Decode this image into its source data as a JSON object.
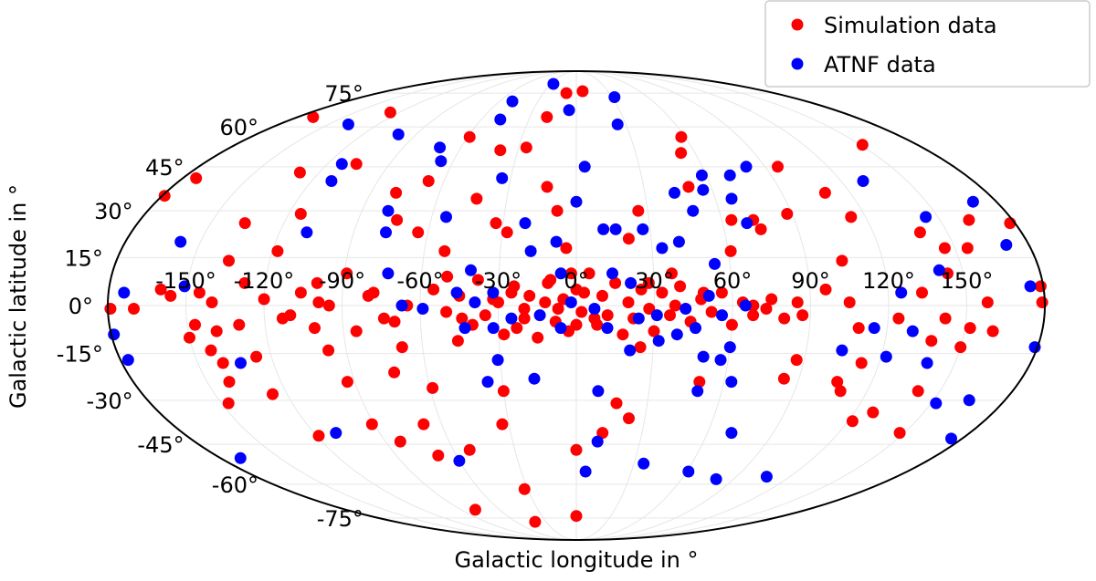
{
  "chart_data": {
    "type": "scatter",
    "projection": "mollweide",
    "xlabel": "Galactic longitude in °",
    "ylabel": "Galactic latitude in °",
    "xlim": [
      -180,
      180
    ],
    "ylim": [
      -90,
      90
    ],
    "grid": true,
    "legend_placement": "top-right",
    "x_tick_labels": [
      "-150°",
      "-120°",
      "-90°",
      "-60°",
      "-30°",
      "0°",
      "30°",
      "60°",
      "90°",
      "120°",
      "150°"
    ],
    "x_ticks": [
      -150,
      -120,
      -90,
      -60,
      -30,
      0,
      30,
      60,
      90,
      120,
      150
    ],
    "y_tick_labels": [
      "-75°",
      "-60°",
      "-45°",
      "-30°",
      "-15°",
      "0°",
      "15°",
      "30°",
      "45°",
      "60°",
      "75°"
    ],
    "y_ticks": [
      -75,
      -60,
      -45,
      -30,
      -15,
      0,
      15,
      30,
      45,
      60,
      75
    ],
    "series": [
      {
        "name": "Simulation data",
        "color": "#ff0000",
        "points": [
          [
            -179,
            35
          ],
          [
            -174,
            41
          ],
          [
            -170,
            64
          ],
          [
            -179,
            -1
          ],
          [
            -170,
            -1
          ],
          [
            -156,
            3
          ],
          [
            -145,
            4
          ],
          [
            -140,
            1
          ],
          [
            -136,
            26
          ],
          [
            -128,
            7
          ],
          [
            -136,
            14
          ],
          [
            -147,
            -6
          ],
          [
            -139,
            -8
          ],
          [
            -143,
            -14
          ],
          [
            -140,
            -18
          ],
          [
            -141,
            -24
          ],
          [
            -126,
            -16
          ],
          [
            -126,
            -28
          ],
          [
            -147,
            -31
          ],
          [
            -115,
            29
          ],
          [
            -118,
            17
          ],
          [
            -106,
            4
          ],
          [
            -113,
            -4
          ],
          [
            -99,
            1
          ],
          [
            -101,
            -7
          ],
          [
            -97,
            -14
          ],
          [
            -89,
            10
          ],
          [
            -93,
            -24
          ],
          [
            -91,
            -38
          ],
          [
            -119,
            -42
          ],
          [
            -106,
            46
          ],
          [
            -129,
            43
          ],
          [
            -126,
            66
          ],
          [
            -79,
            36
          ],
          [
            -74,
            27
          ],
          [
            -78,
            4
          ],
          [
            -74,
            -4
          ],
          [
            -68,
            -13
          ],
          [
            -73,
            -21
          ],
          [
            -59,
            -26
          ],
          [
            -68,
            -38
          ],
          [
            -83,
            -44
          ],
          [
            -64,
            23
          ],
          [
            -67,
            40
          ],
          [
            -52,
            17
          ],
          [
            -50,
            9
          ],
          [
            -44,
            -4
          ],
          [
            -46,
            -11
          ],
          [
            -43,
            34
          ],
          [
            -52,
            -47
          ],
          [
            -79,
            -71
          ],
          [
            -69,
            -49
          ],
          [
            -59,
            56
          ],
          [
            -39,
            51
          ],
          [
            -26,
            52
          ],
          [
            -33,
            26
          ],
          [
            -28,
            23
          ],
          [
            -30,
            1
          ],
          [
            -25,
            4
          ],
          [
            -20,
            -1
          ],
          [
            -23,
            -7
          ],
          [
            -30,
            -27
          ],
          [
            -33,
            -38
          ],
          [
            -32,
            -62
          ],
          [
            -41,
            -77
          ],
          [
            -9,
            75
          ],
          [
            6,
            76
          ],
          [
            -19,
            64
          ],
          [
            -13,
            38
          ],
          [
            -8,
            30
          ],
          [
            -4,
            18
          ],
          [
            -2,
            10
          ],
          [
            -11,
            7
          ],
          [
            -7,
            -1
          ],
          [
            0,
            -6
          ],
          [
            3,
            4
          ],
          [
            7,
            -4
          ],
          [
            0,
            -47
          ],
          [
            0,
            -74
          ],
          [
            12,
            -41
          ],
          [
            17,
            -31
          ],
          [
            23,
            -36
          ],
          [
            25,
            -13
          ],
          [
            21,
            21
          ],
          [
            26,
            30
          ],
          [
            28,
            7
          ],
          [
            37,
            10
          ],
          [
            38,
            0
          ],
          [
            53,
            50
          ],
          [
            58,
            56
          ],
          [
            50,
            38
          ],
          [
            50,
            -24
          ],
          [
            49,
            4
          ],
          [
            61,
            17
          ],
          [
            64,
            27
          ],
          [
            73,
            27
          ],
          [
            75,
            24
          ],
          [
            68,
            0
          ],
          [
            73,
            -1
          ],
          [
            96,
            45
          ],
          [
            88,
            29
          ],
          [
            84,
            -23
          ],
          [
            87,
            -17
          ],
          [
            87,
            -3
          ],
          [
            109,
            36
          ],
          [
            96,
            5
          ],
          [
            104,
            14
          ],
          [
            151,
            53
          ],
          [
            114,
            28
          ],
          [
            105,
            1
          ],
          [
            109,
            -7
          ],
          [
            113,
            -18
          ],
          [
            106,
            -24
          ],
          [
            109,
            -27
          ],
          [
            122,
            -37
          ],
          [
            128,
            -34
          ],
          [
            124,
            -4
          ],
          [
            133,
            4
          ],
          [
            142,
            -4
          ],
          [
            139,
            23
          ],
          [
            146,
            18
          ],
          [
            155,
            18
          ],
          [
            162,
            27
          ],
          [
            150,
            -13
          ],
          [
            152,
            -7
          ],
          [
            138,
            -11
          ],
          [
            141,
            -27
          ],
          [
            148,
            -41
          ],
          [
            178,
            26
          ],
          [
            179,
            6
          ],
          [
            179,
            1
          ],
          [
            161,
            -8
          ],
          [
            144,
            10
          ],
          [
            158,
            1
          ],
          [
            -55,
            5
          ],
          [
            -50,
            -2
          ],
          [
            -45,
            3
          ],
          [
            -40,
            -6
          ],
          [
            -38,
            8
          ],
          [
            -35,
            -3
          ],
          [
            -32,
            2
          ],
          [
            -28,
            -9
          ],
          [
            -24,
            6
          ],
          [
            -20,
            -4
          ],
          [
            -18,
            3
          ],
          [
            -15,
            -10
          ],
          [
            -12,
            1
          ],
          [
            -10,
            8
          ],
          [
            -8,
            -5
          ],
          [
            -5,
            2
          ],
          [
            -3,
            -8
          ],
          [
            0,
            5
          ],
          [
            2,
            -2
          ],
          [
            5,
            10
          ],
          [
            8,
            -6
          ],
          [
            10,
            3
          ],
          [
            12,
            -3
          ],
          [
            15,
            7
          ],
          [
            18,
            -9
          ],
          [
            20,
            1
          ],
          [
            22,
            -4
          ],
          [
            25,
            5
          ],
          [
            28,
            -1
          ],
          [
            30,
            -8
          ],
          [
            33,
            4
          ],
          [
            36,
            -3
          ],
          [
            40,
            6
          ],
          [
            44,
            -5
          ],
          [
            48,
            2
          ],
          [
            52,
            -2
          ],
          [
            56,
            4
          ],
          [
            60,
            -6
          ],
          [
            64,
            1
          ],
          [
            68,
            -3
          ],
          [
            75,
            2
          ],
          [
            80,
            -4
          ],
          [
            85,
            1
          ],
          [
            -65,
            0
          ],
          [
            -70,
            -5
          ],
          [
            -80,
            3
          ],
          [
            -85,
            -8
          ],
          [
            -95,
            0
          ],
          [
            -100,
            7
          ],
          [
            -110,
            -3
          ],
          [
            -120,
            2
          ],
          [
            -130,
            -6
          ],
          [
            -150,
            -10
          ],
          [
            -160,
            5
          ]
        ]
      },
      {
        "name": "ATNF data",
        "color": "#0000ff",
        "points": [
          [
            -27,
            80
          ],
          [
            -50,
            71
          ],
          [
            -5,
            67
          ],
          [
            32,
            73
          ],
          [
            25,
            61
          ],
          [
            -48,
            63
          ],
          [
            -138,
            61
          ],
          [
            -100,
            57
          ],
          [
            -71,
            52
          ],
          [
            -66,
            47
          ],
          [
            -113,
            46
          ],
          [
            -111,
            40
          ],
          [
            -34,
            41
          ],
          [
            4,
            45
          ],
          [
            0,
            33
          ],
          [
            11,
            24
          ],
          [
            16,
            24
          ],
          [
            27,
            24
          ],
          [
            58,
            42
          ],
          [
            56,
            37
          ],
          [
            71,
            42
          ],
          [
            81,
            45
          ],
          [
            43,
            36
          ],
          [
            49,
            30
          ],
          [
            54,
            13
          ],
          [
            67,
            34
          ],
          [
            70,
            26
          ],
          [
            34,
            18
          ],
          [
            41,
            20
          ],
          [
            130,
            40
          ],
          [
            145,
            28
          ],
          [
            170,
            33
          ],
          [
            171,
            19
          ],
          [
            141,
            11
          ],
          [
            175,
            6
          ],
          [
            179,
            -13
          ],
          [
            130,
            -8
          ],
          [
            115,
            -7
          ],
          [
            125,
            4
          ],
          [
            104,
            -14
          ],
          [
            152,
            -31
          ],
          [
            165,
            -30
          ],
          [
            175,
            -43
          ],
          [
            139,
            -18
          ],
          [
            122,
            -16
          ],
          [
            71,
            -41
          ],
          [
            63,
            -24
          ],
          [
            50,
            -27
          ],
          [
            61,
            -55
          ],
          [
            80,
            -58
          ],
          [
            107,
            -57
          ],
          [
            10,
            -44
          ],
          [
            5,
            -55
          ],
          [
            35,
            -52
          ],
          [
            9,
            -27
          ],
          [
            -17,
            -23
          ],
          [
            -36,
            -24
          ],
          [
            -60,
            -51
          ],
          [
            -110,
            -41
          ],
          [
            -170,
            -50
          ],
          [
            -133,
            -18
          ],
          [
            -177,
            -17
          ],
          [
            -179,
            -9
          ],
          [
            -174,
            4
          ],
          [
            -158,
            20
          ],
          [
            -151,
            6
          ],
          [
            -109,
            23
          ],
          [
            -79,
            30
          ],
          [
            -77,
            23
          ],
          [
            -54,
            28
          ],
          [
            -73,
            10
          ],
          [
            -67,
            0
          ],
          [
            -59,
            -1
          ],
          [
            -46,
            4
          ],
          [
            -41,
            11
          ],
          [
            -39,
            1
          ],
          [
            -32,
            4
          ],
          [
            -21,
            26
          ],
          [
            -18,
            17
          ],
          [
            -8,
            20
          ],
          [
            -6,
            10
          ],
          [
            -2,
            1
          ],
          [
            7,
            -1
          ],
          [
            14,
            10
          ],
          [
            21,
            7
          ],
          [
            24,
            -4
          ],
          [
            31,
            -3
          ],
          [
            42,
            -1
          ],
          [
            46,
            -7
          ],
          [
            51,
            3
          ],
          [
            56,
            -3
          ],
          [
            60,
            -13
          ],
          [
            57,
            -17
          ],
          [
            50,
            -16
          ],
          [
            65,
            0
          ],
          [
            39,
            -9
          ],
          [
            32,
            -11
          ],
          [
            21,
            -14
          ],
          [
            12,
            -7
          ],
          [
            -6,
            -7
          ],
          [
            -14,
            -3
          ],
          [
            -25,
            -4
          ],
          [
            -32,
            -7
          ],
          [
            -31,
            -17
          ],
          [
            -43,
            -7
          ]
        ]
      }
    ]
  }
}
